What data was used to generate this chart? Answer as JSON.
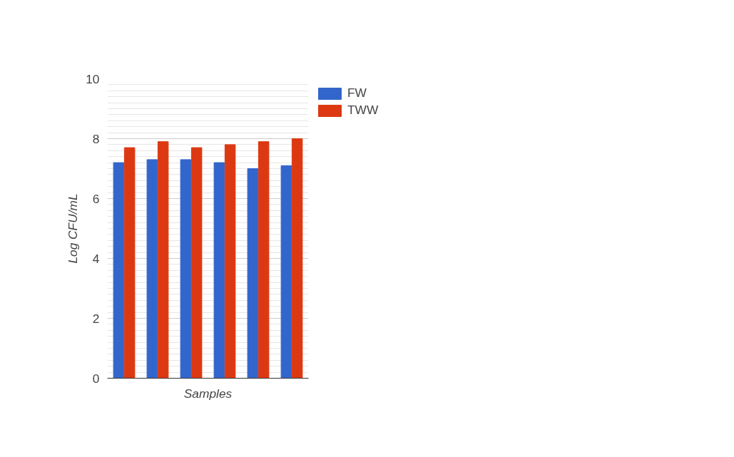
{
  "chart_data": {
    "type": "bar",
    "xlabel": "Samples",
    "ylabel": "Log CFU/mL",
    "categories": [
      null,
      null,
      null,
      null,
      null,
      null
    ],
    "series": [
      {
        "name": "FW",
        "color": "#3366cc",
        "values": [
          7.2,
          7.3,
          7.3,
          7.2,
          7.0,
          7.1
        ]
      },
      {
        "name": "TWW",
        "color": "#dc3912",
        "values": [
          7.7,
          7.9,
          7.7,
          7.8,
          7.9,
          8.0
        ]
      }
    ],
    "ylim": [
      0,
      10
    ],
    "yticks": [
      0,
      2,
      4,
      6,
      8,
      10
    ],
    "grid": "y",
    "legend": "top right"
  }
}
